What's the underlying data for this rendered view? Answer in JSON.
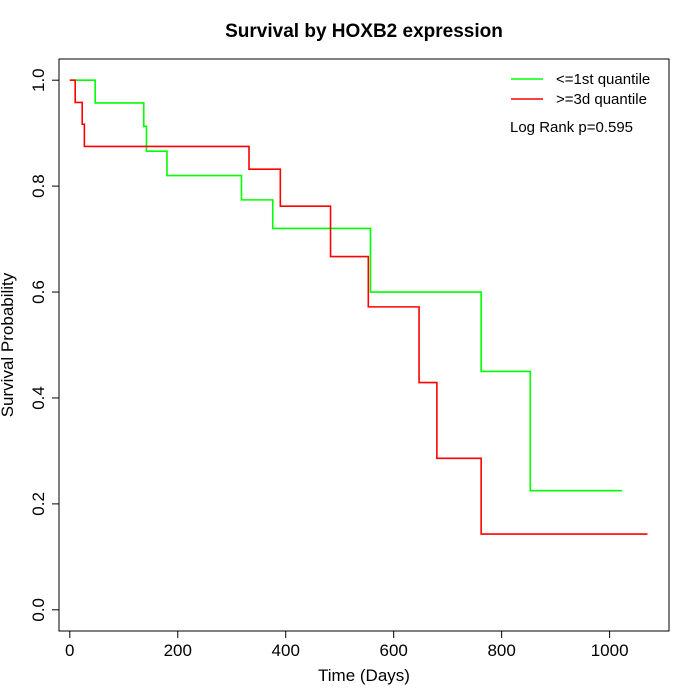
{
  "chart_data": {
    "type": "line",
    "step": true,
    "title": "Survival by HOXB2 expression",
    "xlabel": "Time (Days)",
    "ylabel": "Survival Probability",
    "xlim": [
      -20,
      1110
    ],
    "ylim": [
      -0.04,
      1.04
    ],
    "x_ticks": [
      0,
      200,
      400,
      600,
      800,
      1000
    ],
    "x_tick_labels": [
      "0",
      "200",
      "400",
      "600",
      "800",
      "1000"
    ],
    "y_ticks": [
      0.0,
      0.2,
      0.4,
      0.6,
      0.8,
      1.0
    ],
    "y_tick_labels": [
      "0.0",
      "0.2",
      "0.4",
      "0.6",
      "0.8",
      "1.0"
    ],
    "legend_position": "top-right",
    "annotation": "Log Rank p=0.595",
    "series": [
      {
        "name": "<=1st quantile",
        "color": "#00ff00",
        "x": [
          0,
          47,
          137,
          142,
          180,
          318,
          376,
          557,
          762,
          853,
          1023
        ],
        "y": [
          1.0,
          0.957,
          0.913,
          0.866,
          0.82,
          0.774,
          0.72,
          0.6,
          0.45,
          0.225,
          0.225
        ]
      },
      {
        "name": ">=3d quantile",
        "color": "#ff0000",
        "x": [
          0,
          10,
          23,
          27,
          332,
          390,
          483,
          553,
          647,
          680,
          762,
          1070
        ],
        "y": [
          1.0,
          0.958,
          0.917,
          0.875,
          0.832,
          0.762,
          0.667,
          0.572,
          0.429,
          0.286,
          0.143,
          0.143
        ]
      }
    ]
  }
}
